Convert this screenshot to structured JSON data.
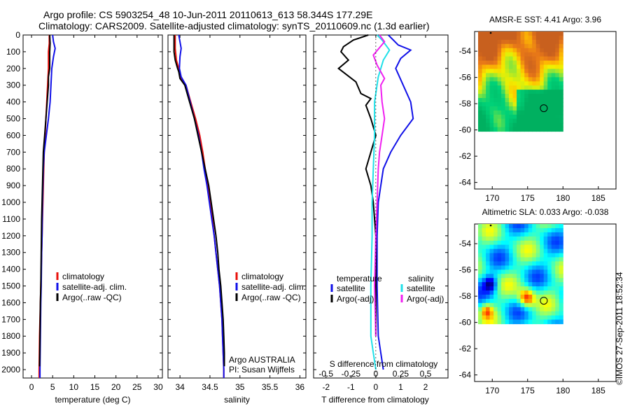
{
  "header": {
    "title_line1": "Argo profile: CS 5903254_48 10-Jun-2011 20110613_613 58.344S 177.29E",
    "title_line2": "Climatology: CARS2009. Satellite-adjusted climatology: synTS_20110609.nc (1.3d earlier)"
  },
  "side_label": "©IMOS 27-Sep-2011 18:52:34",
  "colors": {
    "climatology": "#e8100a",
    "satellite": "#1010e8",
    "argo": "#000000",
    "sat_salinity": "#20e0e8",
    "argo_salinity": "#f020f0"
  },
  "chart_data": [
    {
      "id": "temperature",
      "type": "line",
      "xlabel": "temperature (deg C)",
      "ylabel": "",
      "xlim": [
        -2,
        31
      ],
      "ylim": [
        2050,
        0
      ],
      "xticks": [
        0,
        5,
        10,
        15,
        20,
        25,
        30
      ],
      "yticks": [
        0,
        100,
        200,
        300,
        400,
        500,
        600,
        700,
        800,
        900,
        1000,
        1100,
        1200,
        1300,
        1400,
        1500,
        1600,
        1700,
        1800,
        1900,
        2000
      ],
      "legend": [
        "climatology",
        "satellite-adj. clim.",
        "Argo(..raw -QC)"
      ],
      "series": [
        {
          "name": "climatology",
          "color": "#e8100a",
          "points": [
            [
              4.2,
              0
            ],
            [
              4.2,
              50
            ],
            [
              4.0,
              100
            ],
            [
              4.0,
              200
            ],
            [
              3.8,
              300
            ],
            [
              3.6,
              400
            ],
            [
              3.4,
              500
            ],
            [
              3.2,
              600
            ],
            [
              3.0,
              700
            ],
            [
              2.9,
              800
            ],
            [
              2.8,
              900
            ],
            [
              2.7,
              1000
            ],
            [
              2.6,
              1100
            ],
            [
              2.5,
              1200
            ],
            [
              2.4,
              1300
            ],
            [
              2.3,
              1400
            ],
            [
              2.2,
              1500
            ],
            [
              2.1,
              1600
            ],
            [
              2.0,
              1700
            ],
            [
              1.9,
              1800
            ],
            [
              1.85,
              1900
            ],
            [
              1.8,
              2000
            ],
            [
              1.8,
              2050
            ]
          ]
        },
        {
          "name": "satellite-adj. clim.",
          "color": "#1010e8",
          "points": [
            [
              5.0,
              0
            ],
            [
              5.2,
              40
            ],
            [
              5.6,
              80
            ],
            [
              5.2,
              130
            ],
            [
              4.8,
              200
            ],
            [
              4.6,
              300
            ],
            [
              4.4,
              400
            ],
            [
              4.0,
              500
            ],
            [
              3.5,
              600
            ],
            [
              3.0,
              700
            ],
            [
              2.8,
              800
            ],
            [
              2.7,
              900
            ],
            [
              2.6,
              1000
            ],
            [
              2.55,
              1100
            ],
            [
              2.5,
              1200
            ],
            [
              2.4,
              1300
            ],
            [
              2.35,
              1400
            ],
            [
              2.3,
              1500
            ],
            [
              2.2,
              1600
            ],
            [
              2.15,
              1700
            ],
            [
              2.1,
              1800
            ],
            [
              2.05,
              1900
            ],
            [
              2.0,
              2000
            ],
            [
              2.0,
              2050
            ]
          ]
        },
        {
          "name": "Argo(..raw -QC)",
          "color": "#000000",
          "points": [
            [
              4.3,
              0
            ],
            [
              4.4,
              50
            ],
            [
              4.3,
              100
            ],
            [
              4.3,
              200
            ],
            [
              4.0,
              250
            ],
            [
              4.0,
              300
            ],
            [
              3.7,
              400
            ],
            [
              3.4,
              500
            ],
            [
              3.1,
              600
            ],
            [
              2.8,
              700
            ],
            [
              2.7,
              800
            ],
            [
              2.6,
              900
            ],
            [
              2.5,
              1000
            ],
            [
              2.4,
              1100
            ],
            [
              2.35,
              1200
            ],
            [
              2.3,
              1300
            ],
            [
              2.25,
              1400
            ],
            [
              2.2,
              1500
            ],
            [
              2.1,
              1600
            ],
            [
              2.05,
              1700
            ],
            [
              2.0,
              1800
            ],
            [
              1.95,
              1900
            ],
            [
              1.9,
              1980
            ]
          ]
        }
      ]
    },
    {
      "id": "salinity",
      "type": "line",
      "xlabel": "salinity",
      "xlim": [
        33.8,
        36.1
      ],
      "ylim": [
        2050,
        0
      ],
      "xticks": [
        34,
        34.5,
        35,
        35.5,
        36
      ],
      "legend": [
        "climatology",
        "satellite-adj. clim.",
        "Argo(..raw -QC)"
      ],
      "annotation_line1": "Argo AUSTRALIA",
      "annotation_line2": "PI: Susan Wijffels",
      "series": [
        {
          "name": "climatology",
          "color": "#e8100a",
          "points": [
            [
              33.92,
              0
            ],
            [
              33.92,
              80
            ],
            [
              33.94,
              150
            ],
            [
              33.98,
              200
            ],
            [
              34.0,
              250
            ],
            [
              34.1,
              300
            ],
            [
              34.18,
              400
            ],
            [
              34.26,
              500
            ],
            [
              34.33,
              600
            ],
            [
              34.38,
              700
            ],
            [
              34.42,
              800
            ],
            [
              34.46,
              900
            ],
            [
              34.5,
              1000
            ],
            [
              34.54,
              1100
            ],
            [
              34.57,
              1200
            ],
            [
              34.6,
              1300
            ],
            [
              34.63,
              1400
            ],
            [
              34.66,
              1500
            ],
            [
              34.68,
              1600
            ],
            [
              34.7,
              1700
            ],
            [
              34.71,
              1800
            ],
            [
              34.72,
              1900
            ],
            [
              34.73,
              2000
            ],
            [
              34.73,
              2050
            ]
          ]
        },
        {
          "name": "satellite-adj. clim.",
          "color": "#1010e8",
          "points": [
            [
              33.98,
              0
            ],
            [
              34.0,
              40
            ],
            [
              34.02,
              80
            ],
            [
              34.0,
              130
            ],
            [
              33.99,
              200
            ],
            [
              34.02,
              250
            ],
            [
              34.1,
              300
            ],
            [
              34.17,
              400
            ],
            [
              34.24,
              500
            ],
            [
              34.31,
              600
            ],
            [
              34.36,
              700
            ],
            [
              34.4,
              800
            ],
            [
              34.45,
              900
            ],
            [
              34.49,
              1000
            ],
            [
              34.53,
              1100
            ],
            [
              34.57,
              1200
            ],
            [
              34.6,
              1300
            ],
            [
              34.63,
              1400
            ],
            [
              34.66,
              1500
            ],
            [
              34.68,
              1600
            ],
            [
              34.7,
              1700
            ],
            [
              34.71,
              1800
            ],
            [
              34.72,
              1900
            ],
            [
              34.73,
              2000
            ],
            [
              34.73,
              2050
            ]
          ]
        },
        {
          "name": "Argo(..raw -QC)",
          "color": "#000000",
          "points": [
            [
              33.9,
              0
            ],
            [
              33.9,
              100
            ],
            [
              33.92,
              150
            ],
            [
              33.96,
              200
            ],
            [
              33.98,
              220
            ],
            [
              34.0,
              260
            ],
            [
              34.08,
              300
            ],
            [
              34.16,
              400
            ],
            [
              34.24,
              500
            ],
            [
              34.3,
              600
            ],
            [
              34.36,
              700
            ],
            [
              34.42,
              800
            ],
            [
              34.48,
              900
            ],
            [
              34.52,
              1000
            ],
            [
              34.56,
              1100
            ],
            [
              34.6,
              1200
            ],
            [
              34.63,
              1300
            ],
            [
              34.65,
              1400
            ],
            [
              34.68,
              1500
            ],
            [
              34.7,
              1600
            ],
            [
              34.72,
              1700
            ],
            [
              34.73,
              1800
            ],
            [
              34.74,
              1900
            ],
            [
              34.74,
              1980
            ]
          ]
        }
      ]
    },
    {
      "id": "difference",
      "type": "line",
      "xlabel": "T difference from climatology",
      "top_label": "S difference from climatology",
      "xlim": [
        -2.5,
        2.9
      ],
      "ylim": [
        2050,
        0
      ],
      "xticks": [
        -2,
        -1,
        0,
        1,
        2
      ],
      "s_ticks": [
        -0.5,
        -0.25,
        0,
        0.25,
        0.5
      ],
      "s_tick_labels": [
        "-0.5",
        "-0.25",
        "0",
        "0.25",
        "0.5"
      ],
      "legend_headers": [
        "temperature",
        "salinity"
      ],
      "legend": [
        "satellite",
        "Argo(-adj)",
        "satellite",
        "Argo(-adj)"
      ],
      "series": [
        {
          "name": "temperature satellite",
          "color": "#1010e8",
          "points": [
            [
              0.5,
              0
            ],
            [
              0.9,
              60
            ],
            [
              1.4,
              90
            ],
            [
              1.0,
              140
            ],
            [
              0.8,
              200
            ],
            [
              1.4,
              400
            ],
            [
              1.5,
              500
            ],
            [
              1.0,
              600
            ],
            [
              0.6,
              700
            ],
            [
              0.3,
              800
            ],
            [
              0.2,
              900
            ],
            [
              0.1,
              1000
            ],
            [
              0.05,
              1200
            ],
            [
              0.05,
              1500
            ],
            [
              0.1,
              1800
            ],
            [
              0.2,
              1900
            ],
            [
              0.3,
              2000
            ]
          ]
        },
        {
          "name": "temperature Argo(-adj)",
          "color": "#000000",
          "points": [
            [
              -0.3,
              0
            ],
            [
              -0.9,
              30
            ],
            [
              -1.3,
              70
            ],
            [
              -1.4,
              100
            ],
            [
              -1.1,
              150
            ],
            [
              -1.5,
              200
            ],
            [
              -0.8,
              280
            ],
            [
              -0.6,
              350
            ],
            [
              -0.2,
              380
            ],
            [
              -0.4,
              420
            ],
            [
              -0.2,
              500
            ],
            [
              0.0,
              600
            ],
            [
              -0.2,
              700
            ],
            [
              -0.4,
              800
            ],
            [
              -0.2,
              900
            ],
            [
              -0.1,
              1000
            ],
            [
              0.0,
              1200
            ],
            [
              0.0,
              1500
            ],
            [
              0.0,
              1700
            ],
            [
              0.0,
              1800
            ]
          ]
        },
        {
          "name": "salinity satellite",
          "color": "#20e0e8",
          "points": [
            [
              0.05,
              0
            ],
            [
              0.25,
              30
            ],
            [
              0.55,
              90
            ],
            [
              0.3,
              150
            ],
            [
              0.1,
              250
            ],
            [
              -0.05,
              400
            ],
            [
              -0.05,
              600
            ],
            [
              -0.1,
              800
            ],
            [
              -0.15,
              1000
            ],
            [
              -0.15,
              1200
            ],
            [
              -0.2,
              1500
            ],
            [
              -0.2,
              1800
            ],
            [
              -0.1,
              1900
            ],
            [
              0.0,
              2000
            ]
          ]
        },
        {
          "name": "salinity Argo(-adj)",
          "color": "#f020f0",
          "points": [
            [
              0.15,
              0
            ],
            [
              0.35,
              40
            ],
            [
              -0.1,
              120
            ],
            [
              0.05,
              180
            ],
            [
              0.35,
              260
            ],
            [
              0.2,
              300
            ],
            [
              0.25,
              400
            ],
            [
              0.35,
              500
            ],
            [
              0.25,
              600
            ],
            [
              0.15,
              700
            ],
            [
              0.1,
              800
            ],
            [
              0.05,
              1000
            ],
            [
              0.0,
              1200
            ],
            [
              -0.05,
              1500
            ],
            [
              0.0,
              1800
            ]
          ]
        }
      ]
    },
    {
      "id": "sst-map",
      "type": "heatmap",
      "title": "AMSR-E SST: 4.41 Argo: 3.96",
      "xlim": [
        167.5,
        187.5
      ],
      "ylim": [
        -64.5,
        -52.5
      ],
      "xticks": [
        170,
        175,
        180,
        185
      ],
      "yticks": [
        -54,
        -56,
        -58,
        -60,
        -62,
        -64
      ],
      "ytick_labels": [
        "-54",
        "-56",
        "-58",
        "-60",
        "-62",
        "-64"
      ],
      "data_extent": {
        "lon": [
          168,
          180
        ],
        "lat": [
          -60.1,
          -52.5
        ]
      },
      "marker": {
        "lon": 177.29,
        "lat": -58.344
      }
    },
    {
      "id": "sla-map",
      "type": "heatmap",
      "title": "Altimetric SLA: 0.033 Argo: -0.038",
      "xlim": [
        167.5,
        187.5
      ],
      "ylim": [
        -64.5,
        -52.5
      ],
      "xticks": [
        170,
        175,
        180,
        185
      ],
      "yticks": [
        -54,
        -56,
        -58,
        -60,
        -62,
        -64
      ],
      "ytick_labels": [
        "-54",
        "-56",
        "-58",
        "-60",
        "-62",
        "-64"
      ],
      "data_extent": {
        "lon": [
          168,
          180
        ],
        "lat": [
          -60.1,
          -52.5
        ]
      },
      "marker": {
        "lon": 177.29,
        "lat": -58.344
      }
    }
  ]
}
